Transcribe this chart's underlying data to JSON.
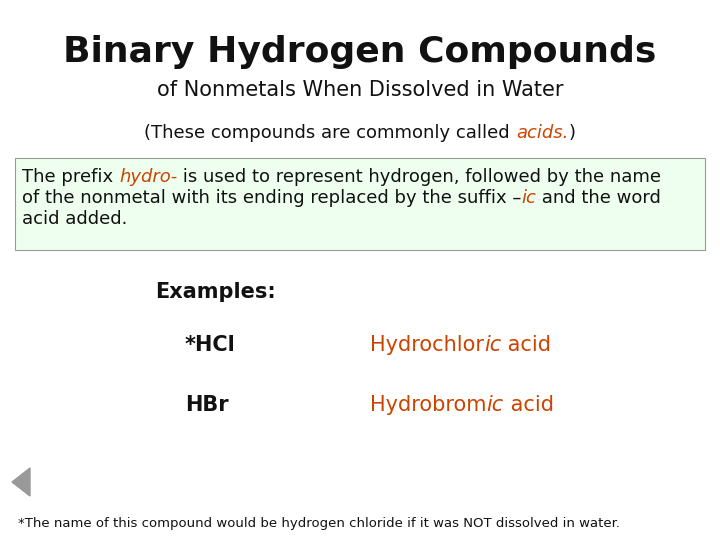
{
  "title_line1": "Binary Hydrogen Compounds",
  "title_line2": "of Nonmetals When Dissolved in Water",
  "bg_color": "#ffffff",
  "box_bg_color": "#efffef",
  "box_border_color": "#999999",
  "title_color": "#111111",
  "body_color": "#111111",
  "accent_color": "#cc4400",
  "footnote": "*The name of this compound would be hydrogen chloride if it was NOT dissolved in water."
}
